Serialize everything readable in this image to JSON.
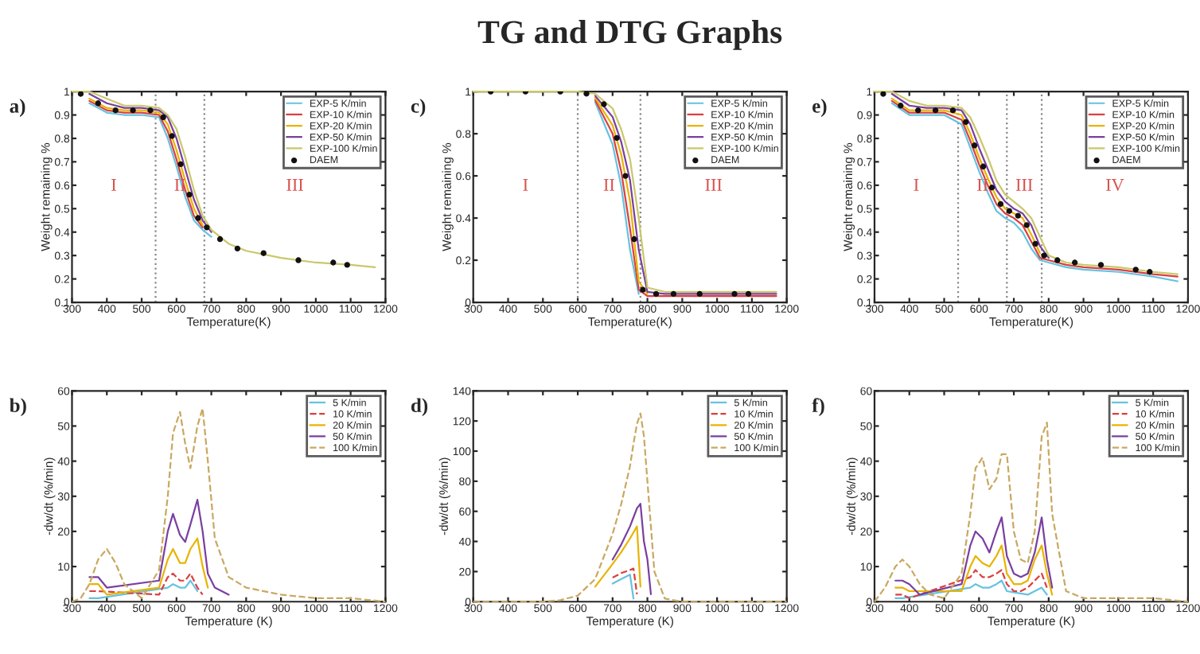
{
  "chart_data": [
    {
      "type": "line",
      "xlabel": "Temperature(K)",
      "ylabel": "Weight remaining %",
      "legend": "top right",
      "x": [
        300,
        350,
        400,
        450,
        500,
        550,
        575,
        600,
        625,
        650,
        675,
        700,
        750,
        800,
        900,
        1000,
        1100,
        1170
      ],
      "xlim": [
        300,
        1200
      ],
      "xticks": [
        300,
        400,
        500,
        600,
        700,
        800,
        900,
        1000,
        1100,
        1200
      ],
      "ylim": [
        0.1,
        1
      ],
      "yticks": [
        0.1,
        0.2,
        0.3,
        0.4,
        0.5,
        0.6,
        0.7,
        0.8,
        0.9,
        1
      ],
      "ref_lines": [
        {
          "axis": "x",
          "value": 540,
          "color": "#888888",
          "line_style": "dotted"
        },
        {
          "axis": "x",
          "value": 680,
          "color": "#888888",
          "line_style": "dotted"
        }
      ],
      "annotations": [
        "a)",
        "I",
        "II",
        "III"
      ],
      "series": [
        {
          "name": "EXP-5 K/min",
          "color": "#66c2e0",
          "values": [
            null,
            0.95,
            0.91,
            0.9,
            0.9,
            0.89,
            0.8,
            0.68,
            0.55,
            0.45,
            0.41,
            0.38,
            null,
            null,
            null,
            null,
            null,
            null
          ]
        },
        {
          "name": "EXP-10 K/min",
          "color": "#d94040",
          "values": [
            null,
            0.96,
            0.92,
            0.91,
            0.91,
            0.9,
            0.83,
            0.71,
            0.58,
            0.47,
            0.42,
            null,
            null,
            null,
            null,
            null,
            null,
            null
          ]
        },
        {
          "name": "EXP-20 K/min",
          "color": "#e8b400",
          "values": [
            null,
            0.97,
            0.93,
            0.92,
            0.92,
            0.91,
            0.86,
            0.75,
            0.62,
            0.5,
            0.43,
            null,
            null,
            null,
            null,
            null,
            null,
            null
          ]
        },
        {
          "name": "EXP-50 K/min",
          "color": "#7a3fa0",
          "values": [
            null,
            0.99,
            0.95,
            0.93,
            0.93,
            0.92,
            0.89,
            0.8,
            0.67,
            0.54,
            0.45,
            0.4,
            null,
            null,
            null,
            null,
            null,
            null
          ]
        },
        {
          "name": "EXP-100 K/min",
          "color": "#c9c86a",
          "values": [
            1,
            1,
            0.97,
            0.94,
            0.94,
            0.93,
            0.9,
            0.84,
            0.72,
            0.58,
            0.47,
            0.41,
            0.35,
            0.32,
            0.29,
            0.27,
            0.26,
            0.25
          ]
        },
        {
          "name": "DAEM",
          "type": "scatter",
          "color": "#111111",
          "marker": "circle",
          "x": [
            325,
            375,
            425,
            475,
            525,
            562,
            587,
            612,
            637,
            662,
            687,
            725,
            775,
            850,
            950,
            1050,
            1090
          ],
          "values": [
            0.99,
            0.95,
            0.92,
            0.92,
            0.92,
            0.89,
            0.81,
            0.69,
            0.56,
            0.46,
            0.42,
            0.37,
            0.33,
            0.31,
            0.28,
            0.27,
            0.26
          ]
        }
      ]
    },
    {
      "type": "line",
      "title": "TG and DTG Graphs",
      "xlabel": "Temperature(K)",
      "ylabel": "Weight remaining %",
      "legend": "top right",
      "x": [
        300,
        400,
        500,
        600,
        650,
        700,
        725,
        750,
        775,
        800,
        850,
        900,
        1000,
        1100,
        1170
      ],
      "xlim": [
        300,
        1200
      ],
      "xticks": [
        300,
        400,
        500,
        600,
        700,
        800,
        900,
        1000,
        1100,
        1200
      ],
      "ylim": [
        0,
        1
      ],
      "yticks": [
        0,
        0.2,
        0.4,
        0.6,
        0.8,
        1
      ],
      "ref_lines": [
        {
          "axis": "x",
          "value": 600,
          "color": "#888888",
          "line_style": "dotted"
        },
        {
          "axis": "x",
          "value": 780,
          "color": "#888888",
          "line_style": "dotted"
        }
      ],
      "annotations": [
        "c)",
        "I",
        "II",
        "III"
      ],
      "series": [
        {
          "name": "EXP-5 K/min",
          "color": "#66c2e0",
          "values": [
            null,
            null,
            null,
            null,
            0.95,
            0.75,
            0.55,
            0.25,
            0.04,
            null,
            null,
            null,
            null,
            null,
            null
          ]
        },
        {
          "name": "EXP-10 K/min",
          "color": "#d94040",
          "values": [
            null,
            null,
            null,
            null,
            0.96,
            0.8,
            0.62,
            0.35,
            0.06,
            0.03,
            0.03,
            0.03,
            0.03,
            0.03,
            0.03
          ]
        },
        {
          "name": "EXP-20 K/min",
          "color": "#e8b400",
          "values": [
            null,
            null,
            null,
            null,
            0.97,
            0.84,
            0.7,
            0.48,
            0.1,
            0.04,
            null,
            null,
            null,
            null,
            null
          ]
        },
        {
          "name": "EXP-50 K/min",
          "color": "#7a3fa0",
          "values": [
            null,
            null,
            null,
            null,
            0.98,
            0.88,
            0.76,
            0.58,
            0.25,
            0.05,
            0.04,
            0.04,
            0.04,
            0.04,
            0.04
          ]
        },
        {
          "name": "EXP-100 K/min",
          "color": "#c9c86a",
          "values": [
            1,
            1,
            1,
            1,
            0.99,
            0.92,
            0.82,
            0.68,
            0.4,
            0.07,
            0.05,
            0.05,
            0.05,
            0.05,
            0.05
          ]
        },
        {
          "name": "DAEM",
          "type": "scatter",
          "color": "#111111",
          "marker": "circle",
          "x": [
            350,
            450,
            550,
            625,
            675,
            712,
            737,
            762,
            787,
            825,
            875,
            950,
            1050,
            1090
          ],
          "values": [
            1,
            1,
            1,
            0.99,
            0.94,
            0.78,
            0.6,
            0.3,
            0.06,
            0.04,
            0.04,
            0.04,
            0.04,
            0.04
          ]
        }
      ]
    },
    {
      "type": "line",
      "xlabel": "Temperature(K)",
      "ylabel": "Weight remaining %",
      "legend": "top right",
      "x": [
        300,
        350,
        400,
        450,
        500,
        550,
        575,
        600,
        625,
        650,
        675,
        700,
        725,
        750,
        775,
        800,
        850,
        900,
        1000,
        1100,
        1170
      ],
      "xlim": [
        300,
        1200
      ],
      "xticks": [
        300,
        400,
        500,
        600,
        700,
        800,
        900,
        1000,
        1100,
        1200
      ],
      "ylim": [
        0.1,
        1
      ],
      "yticks": [
        0.1,
        0.2,
        0.3,
        0.4,
        0.5,
        0.6,
        0.7,
        0.8,
        0.9,
        1
      ],
      "ref_lines": [
        {
          "axis": "x",
          "value": 540,
          "color": "#888888",
          "line_style": "dotted"
        },
        {
          "axis": "x",
          "value": 680,
          "color": "#888888",
          "line_style": "dotted"
        },
        {
          "axis": "x",
          "value": 780,
          "color": "#888888",
          "line_style": "dotted"
        }
      ],
      "annotations": [
        "e)",
        "I",
        "II",
        "III",
        "IV"
      ],
      "series": [
        {
          "name": "EXP-5 K/min",
          "color": "#66c2e0",
          "values": [
            null,
            0.95,
            0.9,
            0.9,
            0.9,
            0.86,
            0.76,
            0.66,
            0.57,
            0.49,
            0.46,
            0.44,
            0.4,
            0.33,
            0.28,
            0.27,
            0.25,
            0.24,
            0.23,
            0.21,
            0.19
          ]
        },
        {
          "name": "EXP-10 K/min",
          "color": "#d94040",
          "values": [
            null,
            0.96,
            0.91,
            0.91,
            0.91,
            0.88,
            0.79,
            0.69,
            0.6,
            0.52,
            0.48,
            0.46,
            0.43,
            0.36,
            0.29,
            0.28,
            0.26,
            0.25,
            0.24,
            0.22,
            0.21
          ]
        },
        {
          "name": "EXP-20 K/min",
          "color": "#e8b400",
          "values": [
            null,
            0.97,
            0.92,
            0.92,
            0.92,
            0.9,
            0.82,
            0.72,
            0.63,
            0.55,
            0.5,
            0.48,
            0.46,
            0.39,
            0.31,
            null,
            null,
            null,
            null,
            null,
            null
          ]
        },
        {
          "name": "EXP-50 K/min",
          "color": "#7a3fa0",
          "values": [
            null,
            0.99,
            0.94,
            0.93,
            0.93,
            0.92,
            0.86,
            0.76,
            0.67,
            0.58,
            0.53,
            0.5,
            0.48,
            0.43,
            0.34,
            0.29,
            null,
            null,
            null,
            null,
            null
          ]
        },
        {
          "name": "EXP-100 K/min",
          "color": "#c9c86a",
          "values": [
            1,
            1,
            0.96,
            0.94,
            0.94,
            0.93,
            0.89,
            0.81,
            0.72,
            0.62,
            0.56,
            0.53,
            0.5,
            0.46,
            0.38,
            0.3,
            0.27,
            0.26,
            0.25,
            0.23,
            0.22
          ]
        },
        {
          "name": "DAEM",
          "type": "scatter",
          "color": "#111111",
          "marker": "circle",
          "x": [
            325,
            375,
            425,
            475,
            525,
            562,
            587,
            612,
            637,
            662,
            687,
            712,
            737,
            762,
            787,
            825,
            875,
            950,
            1050,
            1090
          ],
          "values": [
            0.99,
            0.94,
            0.92,
            0.92,
            0.92,
            0.87,
            0.77,
            0.68,
            0.59,
            0.52,
            0.49,
            0.47,
            0.43,
            0.35,
            0.3,
            0.28,
            0.27,
            0.26,
            0.24,
            0.23
          ]
        }
      ]
    },
    {
      "type": "line",
      "xlabel": "Temperature (K)",
      "ylabel": "-dw/dt (%/min)",
      "legend": "top right",
      "x": [
        300,
        325,
        350,
        375,
        400,
        425,
        450,
        500,
        550,
        575,
        590,
        610,
        625,
        640,
        660,
        675,
        690,
        710,
        750,
        800,
        900,
        1000,
        1100,
        1200
      ],
      "xlim": [
        300,
        1200
      ],
      "xticks": [
        300,
        400,
        500,
        600,
        700,
        800,
        900,
        1000,
        1100,
        1200
      ],
      "ylim": [
        0,
        60
      ],
      "yticks": [
        0,
        10,
        20,
        30,
        40,
        50,
        60
      ],
      "annotations": [
        "b)"
      ],
      "series": [
        {
          "name": "5 K/min",
          "color": "#66c2e0",
          "x": [
            350,
            375,
            575,
            590,
            610,
            625,
            640,
            660
          ],
          "values": [
            1,
            1,
            4,
            5,
            4,
            4,
            6,
            3
          ]
        },
        {
          "name": "10 K/min",
          "color": "#d94040",
          "line_style": "dashed",
          "x": [
            350,
            375,
            550,
            575,
            590,
            610,
            625,
            640,
            660,
            675
          ],
          "values": [
            3,
            3,
            2,
            7,
            8,
            6,
            6,
            8,
            4,
            2
          ]
        },
        {
          "name": "20 K/min",
          "color": "#e8b400",
          "x": [
            350,
            375,
            400,
            550,
            575,
            590,
            610,
            625,
            640,
            660,
            675,
            690
          ],
          "values": [
            5,
            5,
            2,
            4,
            12,
            15,
            11,
            11,
            15,
            18,
            10,
            4
          ]
        },
        {
          "name": "50 K/min",
          "color": "#7a3fa0",
          "x": [
            350,
            375,
            400,
            550,
            575,
            590,
            610,
            625,
            640,
            660,
            675,
            690,
            710,
            750
          ],
          "values": [
            7,
            7,
            4,
            6,
            20,
            25,
            19,
            17,
            22,
            29,
            20,
            8,
            4,
            2
          ]
        },
        {
          "name": "100 K/min",
          "color": "#c9a860",
          "line_style": "dashed",
          "values": [
            0,
            1,
            5,
            12,
            15,
            11,
            5,
            1,
            9,
            30,
            48,
            54,
            45,
            38,
            50,
            55,
            40,
            18,
            7,
            4,
            2,
            1,
            1,
            0
          ]
        }
      ]
    },
    {
      "type": "line",
      "xlabel": "Temperature (K)",
      "ylabel": "-dw/dt (%/min)",
      "legend": "top right",
      "x": [
        300,
        400,
        500,
        550,
        600,
        650,
        700,
        725,
        750,
        760,
        770,
        780,
        790,
        800,
        810,
        820,
        850,
        900,
        1000,
        1100,
        1200
      ],
      "xlim": [
        300,
        1200
      ],
      "xticks": [
        300,
        400,
        500,
        600,
        700,
        800,
        900,
        1000,
        1100,
        1200
      ],
      "ylim": [
        0,
        140
      ],
      "yticks": [
        0,
        20,
        40,
        60,
        80,
        100,
        120,
        140
      ],
      "annotations": [
        "d)"
      ],
      "series": [
        {
          "name": "5 K/min",
          "color": "#66c2e0",
          "x": [
            700,
            725,
            750,
            760
          ],
          "values": [
            12,
            15,
            18,
            2
          ]
        },
        {
          "name": "10 K/min",
          "color": "#d94040",
          "line_style": "dashed",
          "x": [
            700,
            725,
            750,
            760,
            770
          ],
          "values": [
            16,
            19,
            21,
            22,
            5
          ]
        },
        {
          "name": "20 K/min",
          "color": "#e8b400",
          "x": [
            650,
            700,
            725,
            750,
            760,
            770,
            780
          ],
          "values": [
            10,
            25,
            33,
            42,
            46,
            50,
            10
          ]
        },
        {
          "name": "50 K/min",
          "color": "#7a3fa0",
          "x": [
            700,
            725,
            750,
            760,
            770,
            780,
            790,
            800,
            810
          ],
          "values": [
            28,
            38,
            50,
            56,
            62,
            65,
            40,
            28,
            5
          ]
        },
        {
          "name": "100 K/min",
          "color": "#c9a860",
          "line_style": "dashed",
          "values": [
            0,
            0,
            0,
            1,
            4,
            15,
            45,
            65,
            90,
            105,
            118,
            125,
            110,
            80,
            50,
            20,
            2,
            0,
            0,
            0,
            0
          ]
        }
      ]
    },
    {
      "type": "line",
      "xlabel": "Temperature (K)",
      "ylabel": "-dw/dt (%/min)",
      "legend": "top right",
      "x": [
        300,
        330,
        360,
        380,
        400,
        430,
        460,
        500,
        550,
        575,
        590,
        610,
        630,
        650,
        665,
        680,
        700,
        720,
        740,
        760,
        780,
        795,
        810,
        850,
        900,
        1000,
        1100,
        1200
      ],
      "xlim": [
        300,
        1200
      ],
      "xticks": [
        300,
        400,
        500,
        600,
        700,
        800,
        900,
        1000,
        1100,
        1200
      ],
      "ylim": [
        0,
        60
      ],
      "yticks": [
        0,
        10,
        20,
        30,
        40,
        50,
        60
      ],
      "annotations": [
        "f)"
      ],
      "series": [
        {
          "name": "5 K/min",
          "color": "#66c2e0",
          "x": [
            360,
            380,
            575,
            590,
            610,
            630,
            650,
            665,
            680,
            740,
            760,
            780,
            795
          ],
          "values": [
            1,
            1,
            4,
            5,
            4,
            4,
            5,
            6,
            3,
            2,
            3,
            4,
            2
          ]
        },
        {
          "name": "10 K/min",
          "color": "#d94040",
          "line_style": "dashed",
          "x": [
            360,
            380,
            400,
            575,
            590,
            610,
            630,
            650,
            665,
            680,
            700,
            720,
            740,
            760,
            780,
            795
          ],
          "values": [
            2,
            2,
            1,
            7,
            9,
            7,
            7,
            8,
            9,
            5,
            3,
            3,
            4,
            6,
            8,
            4
          ]
        },
        {
          "name": "20 K/min",
          "color": "#e8b400",
          "x": [
            360,
            380,
            400,
            550,
            575,
            590,
            610,
            630,
            650,
            665,
            680,
            700,
            720,
            740,
            760,
            780,
            795,
            810
          ],
          "values": [
            4,
            4,
            3,
            3,
            10,
            13,
            11,
            10,
            13,
            16,
            8,
            5,
            5,
            6,
            12,
            16,
            8,
            2
          ]
        },
        {
          "name": "50 K/min",
          "color": "#7a3fa0",
          "x": [
            360,
            380,
            400,
            430,
            550,
            575,
            590,
            610,
            630,
            650,
            665,
            680,
            700,
            720,
            740,
            760,
            780,
            795,
            810
          ],
          "values": [
            6,
            6,
            5,
            2,
            5,
            16,
            20,
            18,
            14,
            20,
            24,
            13,
            8,
            7,
            8,
            14,
            24,
            12,
            4
          ]
        },
        {
          "name": "100 K/min",
          "color": "#c9a860",
          "line_style": "dashed",
          "values": [
            0,
            4,
            10,
            12,
            10,
            5,
            2,
            1,
            8,
            25,
            38,
            41,
            32,
            35,
            42,
            42,
            20,
            12,
            11,
            20,
            47,
            51,
            25,
            3,
            1,
            1,
            1,
            0
          ]
        }
      ]
    }
  ]
}
